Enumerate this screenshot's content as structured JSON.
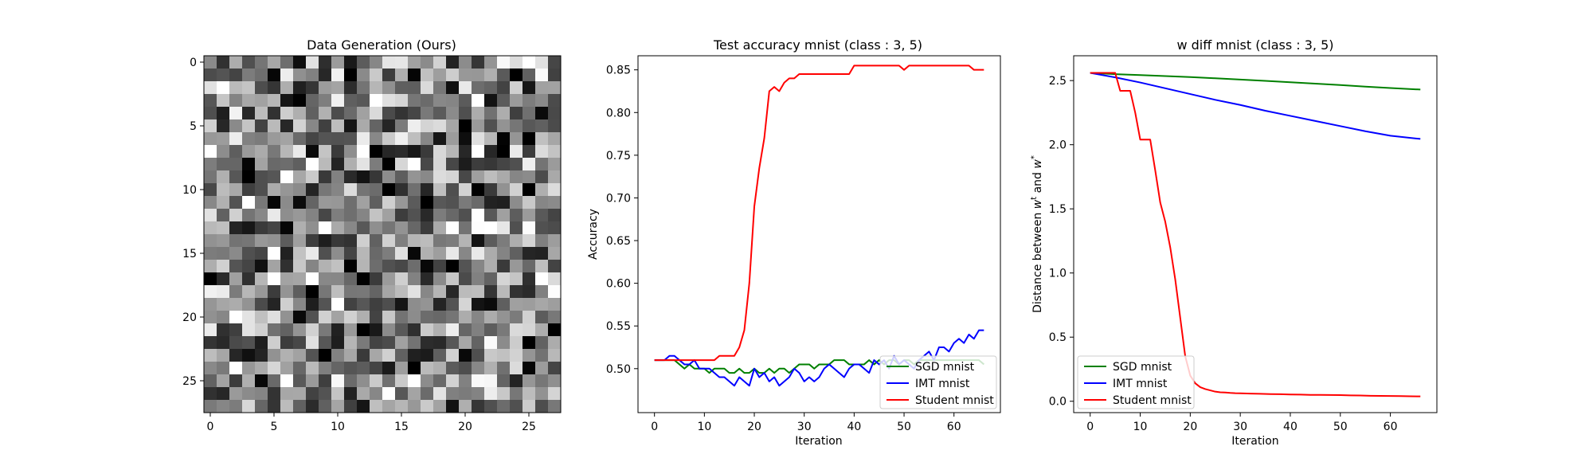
{
  "chart_data": [
    {
      "type": "heatmap",
      "title": "Data Generation (Ours)",
      "rows": 28,
      "cols": 28,
      "colormap": "gray",
      "value_range": [
        0,
        255
      ],
      "seed": 1337,
      "xticks": [
        "0",
        "5",
        "10",
        "15",
        "20",
        "25"
      ],
      "yticks": [
        "0",
        "5",
        "10",
        "15",
        "20",
        "25"
      ]
    },
    {
      "type": "line",
      "title": "Test accuracy mnist (class : 3, 5)",
      "xlabel": "Iteration",
      "ylabel": "Accuracy",
      "xlim": [
        -3.3,
        69.3
      ],
      "ylim": [
        0.4485,
        0.8665
      ],
      "xticks": [
        "0",
        "10",
        "20",
        "30",
        "40",
        "50",
        "60"
      ],
      "yticks": [
        "0.50",
        "0.55",
        "0.60",
        "0.65",
        "0.70",
        "0.75",
        "0.80",
        "0.85"
      ],
      "legend": {
        "position": "lower-right",
        "entries": [
          "SGD mnist",
          "IMT mnist",
          "Student mnist"
        ]
      },
      "series": [
        {
          "name": "SGD mnist",
          "color": "#008000",
          "x": [
            0,
            1,
            2,
            3,
            4,
            5,
            6,
            7,
            8,
            9,
            10,
            11,
            12,
            13,
            14,
            15,
            16,
            17,
            18,
            19,
            20,
            21,
            22,
            23,
            24,
            25,
            26,
            27,
            28,
            29,
            30,
            31,
            32,
            33,
            34,
            35,
            36,
            37,
            38,
            39,
            40,
            41,
            42,
            43,
            44,
            45,
            46,
            47,
            48,
            49,
            50,
            51,
            52,
            53,
            54,
            55,
            56,
            57,
            58,
            59,
            60,
            61,
            62,
            63,
            64,
            65,
            66
          ],
          "y": [
            0.51,
            0.51,
            0.51,
            0.51,
            0.51,
            0.505,
            0.5,
            0.505,
            0.5,
            0.5,
            0.5,
            0.495,
            0.5,
            0.5,
            0.5,
            0.495,
            0.495,
            0.5,
            0.495,
            0.495,
            0.5,
            0.495,
            0.495,
            0.5,
            0.495,
            0.5,
            0.5,
            0.495,
            0.5,
            0.505,
            0.505,
            0.505,
            0.5,
            0.505,
            0.505,
            0.505,
            0.51,
            0.51,
            0.51,
            0.505,
            0.505,
            0.505,
            0.505,
            0.51,
            0.505,
            0.51,
            0.505,
            0.51,
            0.51,
            0.505,
            0.51,
            0.51,
            0.505,
            0.51,
            0.51,
            0.51,
            0.51,
            0.51,
            0.51,
            0.51,
            0.51,
            0.51,
            0.51,
            0.51,
            0.51,
            0.51,
            0.505
          ]
        },
        {
          "name": "IMT mnist",
          "color": "#0000ff",
          "x": [
            0,
            1,
            2,
            3,
            4,
            5,
            6,
            7,
            8,
            9,
            10,
            11,
            12,
            13,
            14,
            15,
            16,
            17,
            18,
            19,
            20,
            21,
            22,
            23,
            24,
            25,
            26,
            27,
            28,
            29,
            30,
            31,
            32,
            33,
            34,
            35,
            36,
            37,
            38,
            39,
            40,
            41,
            42,
            43,
            44,
            45,
            46,
            47,
            48,
            49,
            50,
            51,
            52,
            53,
            54,
            55,
            56,
            57,
            58,
            59,
            60,
            61,
            62,
            63,
            64,
            65,
            66
          ],
          "y": [
            0.51,
            0.51,
            0.51,
            0.515,
            0.515,
            0.51,
            0.505,
            0.505,
            0.51,
            0.5,
            0.5,
            0.5,
            0.495,
            0.49,
            0.49,
            0.485,
            0.48,
            0.49,
            0.485,
            0.48,
            0.5,
            0.49,
            0.495,
            0.485,
            0.49,
            0.48,
            0.485,
            0.49,
            0.5,
            0.495,
            0.485,
            0.49,
            0.485,
            0.49,
            0.5,
            0.505,
            0.5,
            0.495,
            0.49,
            0.5,
            0.505,
            0.505,
            0.5,
            0.495,
            0.51,
            0.505,
            0.51,
            0.5,
            0.515,
            0.505,
            0.51,
            0.505,
            0.5,
            0.51,
            0.515,
            0.52,
            0.51,
            0.525,
            0.525,
            0.52,
            0.53,
            0.535,
            0.53,
            0.54,
            0.535,
            0.545,
            0.545
          ]
        },
        {
          "name": "Student mnist",
          "color": "#ff0000",
          "x": [
            0,
            1,
            2,
            3,
            4,
            5,
            6,
            7,
            8,
            9,
            10,
            11,
            12,
            13,
            14,
            15,
            16,
            17,
            18,
            19,
            20,
            21,
            22,
            23,
            24,
            25,
            26,
            27,
            28,
            29,
            30,
            31,
            32,
            33,
            34,
            35,
            36,
            37,
            38,
            39,
            40,
            41,
            42,
            43,
            44,
            45,
            46,
            47,
            48,
            49,
            50,
            51,
            52,
            53,
            54,
            55,
            56,
            57,
            58,
            59,
            60,
            61,
            62,
            63,
            64,
            65,
            66
          ],
          "y": [
            0.51,
            0.51,
            0.51,
            0.51,
            0.51,
            0.51,
            0.51,
            0.51,
            0.51,
            0.51,
            0.51,
            0.51,
            0.51,
            0.515,
            0.515,
            0.515,
            0.515,
            0.525,
            0.545,
            0.6,
            0.69,
            0.735,
            0.77,
            0.825,
            0.83,
            0.825,
            0.835,
            0.84,
            0.84,
            0.845,
            0.845,
            0.845,
            0.845,
            0.845,
            0.845,
            0.845,
            0.845,
            0.845,
            0.845,
            0.845,
            0.855,
            0.855,
            0.855,
            0.855,
            0.855,
            0.855,
            0.855,
            0.855,
            0.855,
            0.855,
            0.85,
            0.855,
            0.855,
            0.855,
            0.855,
            0.855,
            0.855,
            0.855,
            0.855,
            0.855,
            0.855,
            0.855,
            0.855,
            0.855,
            0.85,
            0.85,
            0.85
          ]
        }
      ]
    },
    {
      "type": "line",
      "title": "w diff mnist (class : 3, 5)",
      "xlabel": "Iteration",
      "ylabel": "Distance between w^t and w^*",
      "ylabel_parts": [
        "Distance between ",
        "w",
        "t",
        " and ",
        "w",
        "*"
      ],
      "xlim": [
        -3.3,
        69.3
      ],
      "ylim": [
        -0.0885,
        2.6935
      ],
      "xticks": [
        "0",
        "10",
        "20",
        "30",
        "40",
        "50",
        "60"
      ],
      "yticks": [
        "0.0",
        "0.5",
        "1.0",
        "1.5",
        "2.0",
        "2.5"
      ],
      "legend": {
        "position": "lower-left",
        "entries": [
          "SGD mnist",
          "IMT mnist",
          "Student mnist"
        ]
      },
      "series": [
        {
          "name": "SGD mnist",
          "color": "#008000",
          "x": [
            0,
            5,
            10,
            15,
            20,
            25,
            30,
            35,
            40,
            45,
            50,
            55,
            60,
            66
          ],
          "y": [
            2.56,
            2.55,
            2.543,
            2.535,
            2.527,
            2.518,
            2.508,
            2.498,
            2.487,
            2.476,
            2.465,
            2.453,
            2.442,
            2.43
          ]
        },
        {
          "name": "IMT mnist",
          "color": "#0000ff",
          "x": [
            0,
            5,
            10,
            15,
            20,
            25,
            30,
            35,
            40,
            45,
            50,
            55,
            60,
            66
          ],
          "y": [
            2.56,
            2.525,
            2.485,
            2.44,
            2.395,
            2.35,
            2.31,
            2.265,
            2.225,
            2.185,
            2.145,
            2.105,
            2.07,
            2.045
          ]
        },
        {
          "name": "Student mnist",
          "color": "#ff0000",
          "x": [
            0,
            1,
            2,
            3,
            4,
            5,
            6,
            7,
            8,
            9,
            10,
            11,
            12,
            13,
            14,
            15,
            16,
            17,
            18,
            19,
            20,
            21,
            22,
            23,
            24,
            25,
            26,
            27,
            28,
            29,
            30,
            32,
            34,
            36,
            38,
            40,
            42,
            44,
            46,
            48,
            50,
            52,
            54,
            56,
            58,
            60,
            62,
            64,
            66
          ],
          "y": [
            2.56,
            2.56,
            2.56,
            2.56,
            2.56,
            2.56,
            2.42,
            2.42,
            2.42,
            2.25,
            2.04,
            2.04,
            2.04,
            1.8,
            1.55,
            1.4,
            1.2,
            0.95,
            0.65,
            0.35,
            0.2,
            0.14,
            0.11,
            0.095,
            0.085,
            0.075,
            0.07,
            0.068,
            0.065,
            0.063,
            0.062,
            0.06,
            0.058,
            0.056,
            0.055,
            0.053,
            0.052,
            0.05,
            0.05,
            0.049,
            0.048,
            0.046,
            0.045,
            0.043,
            0.042,
            0.041,
            0.04,
            0.039,
            0.038
          ]
        }
      ]
    }
  ]
}
